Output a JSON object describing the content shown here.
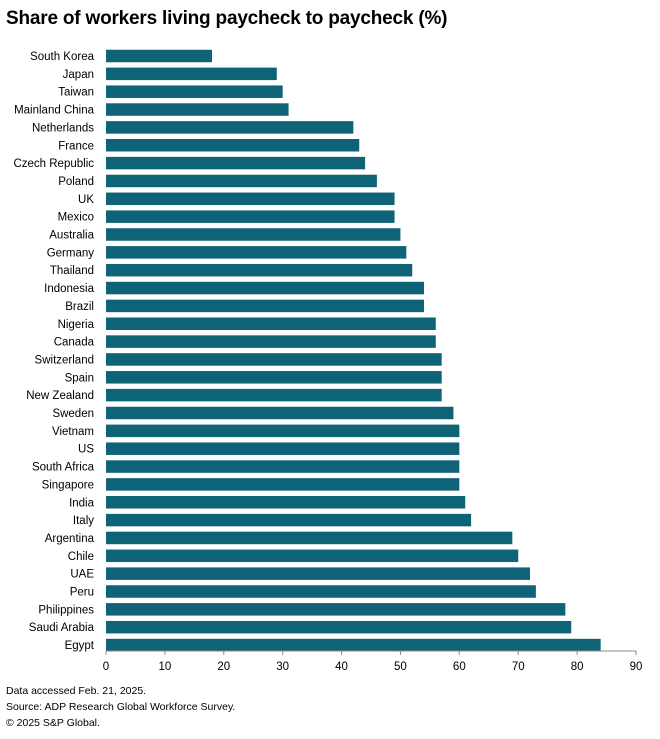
{
  "chart_data": {
    "type": "bar",
    "orientation": "horizontal",
    "title": "Share of workers living paycheck to paycheck (%)",
    "categories": [
      "South Korea",
      "Japan",
      "Taiwan",
      "Mainland China",
      "Netherlands",
      "France",
      "Czech Republic",
      "Poland",
      "UK",
      "Mexico",
      "Australia",
      "Germany",
      "Thailand",
      "Indonesia",
      "Brazil",
      "Nigeria",
      "Canada",
      "Switzerland",
      "Spain",
      "New Zealand",
      "Sweden",
      "Vietnam",
      "US",
      "South Africa",
      "Singapore",
      "India",
      "Italy",
      "Argentina",
      "Chile",
      "UAE",
      "Peru",
      "Philippines",
      "Saudi Arabia",
      "Egypt"
    ],
    "values": [
      18,
      29,
      30,
      31,
      42,
      43,
      44,
      46,
      49,
      49,
      50,
      51,
      52,
      54,
      54,
      56,
      56,
      57,
      57,
      57,
      59,
      60,
      60,
      60,
      60,
      61,
      62,
      69,
      70,
      72,
      73,
      78,
      79,
      84
    ],
    "xlim": [
      0,
      90
    ],
    "xticks": [
      0,
      10,
      20,
      30,
      40,
      50,
      60,
      70,
      80,
      90
    ],
    "xlabel": "",
    "ylabel": "",
    "grid": false,
    "bar_color": "#0e6377"
  },
  "footer": {
    "line1": "Data accessed Feb. 21, 2025.",
    "line2": "Source: ADP Research Global Workforce Survey.",
    "line3": "© 2025 S&P Global."
  }
}
